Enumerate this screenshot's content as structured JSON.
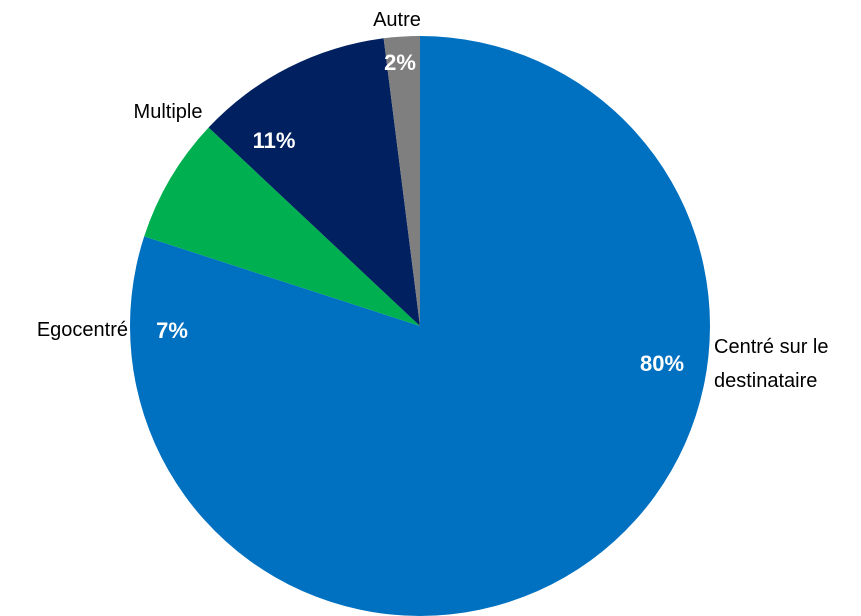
{
  "chart_data": {
    "type": "pie",
    "categories": [
      "Centré sur le destinataire",
      "Egocentré",
      "Multiple",
      "Autre"
    ],
    "values": [
      80,
      7,
      11,
      2
    ],
    "value_labels": [
      "80%",
      "7%",
      "11%",
      "2%"
    ],
    "colors": [
      "#0070c0",
      "#00b050",
      "#002060",
      "#7f7f7f"
    ]
  }
}
